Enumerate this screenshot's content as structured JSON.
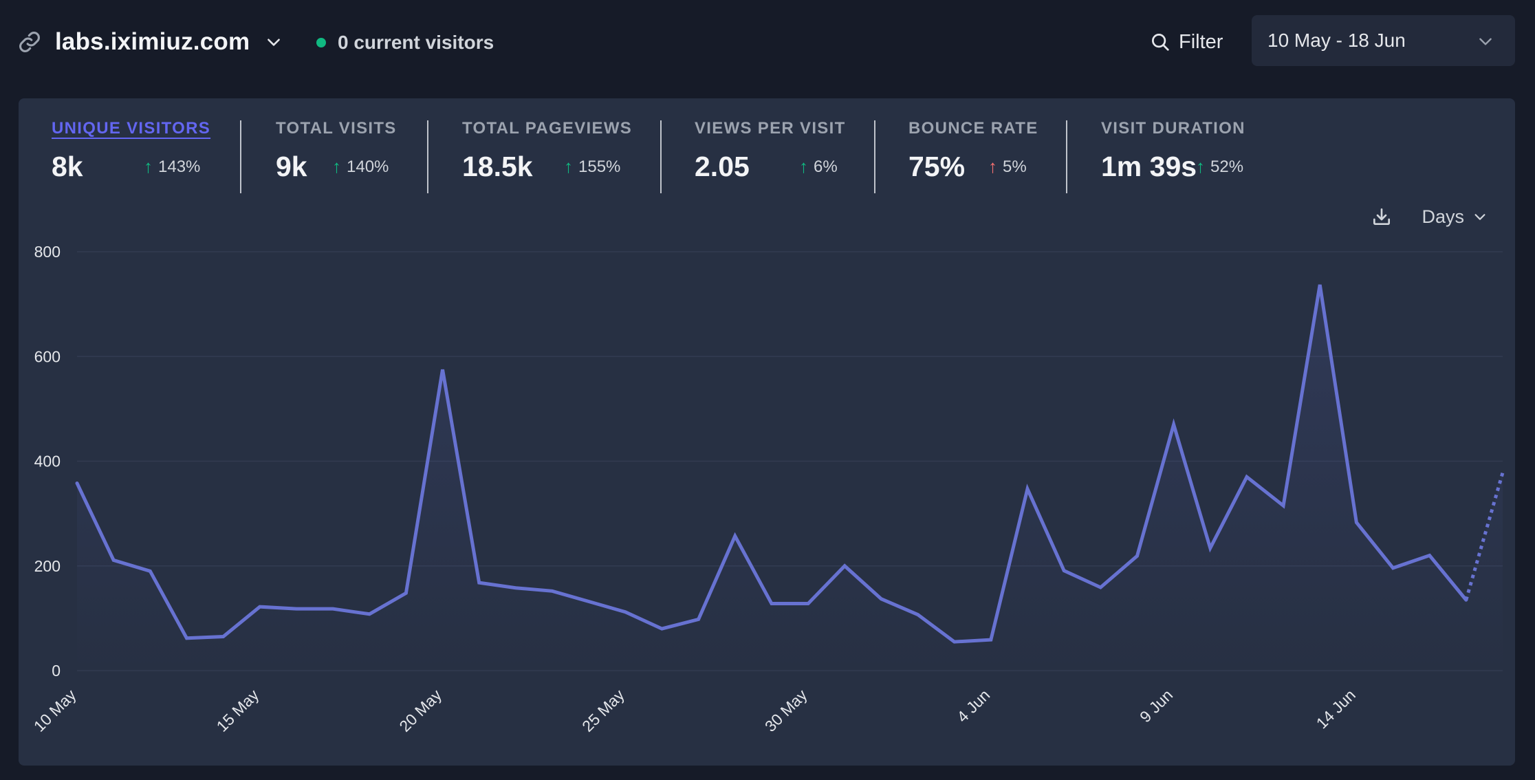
{
  "header": {
    "site_name": "labs.iximiuz.com",
    "current_visitors": "0 current visitors",
    "filter_label": "Filter",
    "date_range": "10 May - 18 Jun"
  },
  "metrics": [
    {
      "label": "UNIQUE VISITORS",
      "value": "8k",
      "change": "143%",
      "trend": "up"
    },
    {
      "label": "TOTAL VISITS",
      "value": "9k",
      "change": "140%",
      "trend": "up"
    },
    {
      "label": "TOTAL PAGEVIEWS",
      "value": "18.5k",
      "change": "155%",
      "trend": "up"
    },
    {
      "label": "VIEWS PER VISIT",
      "value": "2.05",
      "change": "6%",
      "trend": "up"
    },
    {
      "label": "BOUNCE RATE",
      "value": "75%",
      "change": "5%",
      "trend": "up-bad"
    },
    {
      "label": "VISIT DURATION",
      "value": "1m 39s",
      "change": "52%",
      "trend": "up"
    }
  ],
  "toolbar": {
    "interval": "Days"
  },
  "icons": {
    "site": "link-icon",
    "site_menu": "chevron-down-icon",
    "live": "live-dot-icon",
    "filter": "search-icon",
    "date_menu": "chevron-down-icon",
    "download": "download-icon",
    "interval_menu": "chevron-down-icon"
  },
  "colors": {
    "background": "#161b28",
    "card": "#273043",
    "accent": "#6366f1",
    "line": "#6772d1",
    "positive": "#10b981",
    "negative": "#f87171"
  },
  "chart_data": {
    "type": "line",
    "title": "",
    "xlabel": "",
    "ylabel": "",
    "ylim": [
      0,
      800
    ],
    "yticks": [
      0,
      200,
      400,
      600,
      800
    ],
    "xtick_labels": [
      "10 May",
      "15 May",
      "20 May",
      "25 May",
      "30 May",
      "4 Jun",
      "9 Jun",
      "14 Jun"
    ],
    "grid": true,
    "x": [
      "10 May",
      "11 May",
      "12 May",
      "13 May",
      "14 May",
      "15 May",
      "16 May",
      "17 May",
      "18 May",
      "19 May",
      "20 May",
      "21 May",
      "22 May",
      "23 May",
      "24 May",
      "25 May",
      "26 May",
      "27 May",
      "28 May",
      "29 May",
      "30 May",
      "31 May",
      "1 Jun",
      "2 Jun",
      "3 Jun",
      "4 Jun",
      "5 Jun",
      "6 Jun",
      "7 Jun",
      "8 Jun",
      "9 Jun",
      "10 Jun",
      "11 Jun",
      "12 Jun",
      "13 Jun",
      "14 Jun",
      "15 Jun",
      "16 Jun",
      "17 Jun",
      "18 Jun"
    ],
    "series": [
      {
        "values": [
          358,
          211,
          190,
          62,
          65,
          122,
          118,
          118,
          108,
          148,
          575,
          168,
          158,
          152,
          132,
          112,
          80,
          98,
          257,
          128,
          128,
          200,
          137,
          107,
          55,
          59,
          347,
          191,
          159,
          219,
          470,
          234,
          370,
          315,
          737,
          283,
          196,
          220,
          135,
          378
        ],
        "partial_last_point": true
      }
    ]
  }
}
